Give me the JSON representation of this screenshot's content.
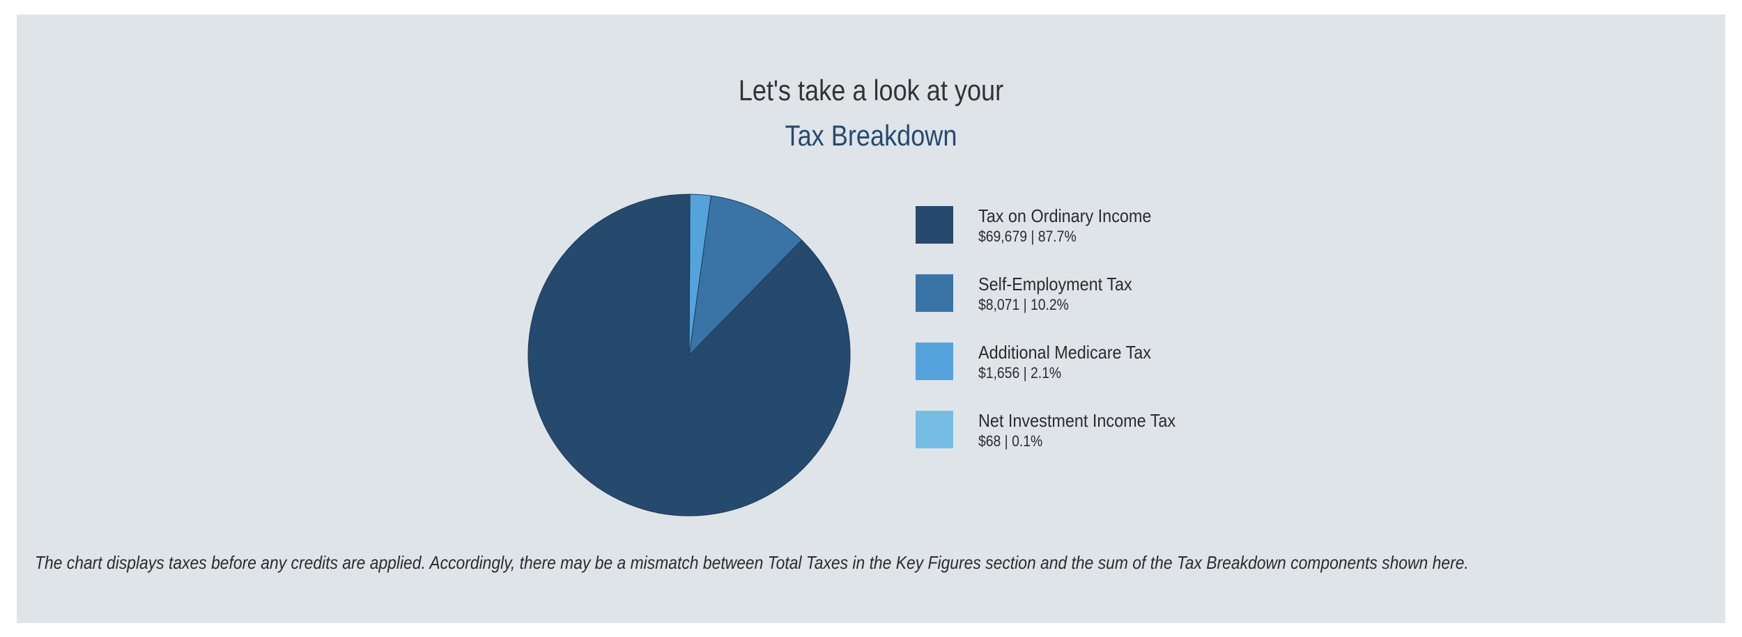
{
  "header": {
    "intro": "Let's take a look at your",
    "title": "Tax Breakdown"
  },
  "chart_data": {
    "type": "pie",
    "categories": [
      "Tax on Ordinary Income",
      "Self-Employment Tax",
      "Additional Medicare Tax",
      "Net Investment Income Tax"
    ],
    "values": [
      69679,
      8071,
      1656,
      68
    ],
    "percentages": [
      87.7,
      10.2,
      2.1,
      0.1
    ],
    "colors": [
      "#254a6e",
      "#3a73a6",
      "#55a3dc",
      "#76bde3"
    ],
    "legend_placement": "right"
  },
  "legend": [
    {
      "label": "Tax on Ordinary Income",
      "value": "$69,679 | 87.7%",
      "color": "#254a6e"
    },
    {
      "label": "Self-Employment Tax",
      "value": "$8,071 | 10.2%",
      "color": "#3a73a6"
    },
    {
      "label": "Additional Medicare Tax",
      "value": "$1,656 | 2.1%",
      "color": "#55a3dc"
    },
    {
      "label": "Net Investment Income Tax",
      "value": "$68 | 0.1%",
      "color": "#76bde3"
    }
  ],
  "footer": {
    "note": "The chart displays taxes before any credits are applied. Accordingly, there may be a mismatch between Total Taxes in the Key Figures section and the sum of the Tax Breakdown components shown here."
  }
}
